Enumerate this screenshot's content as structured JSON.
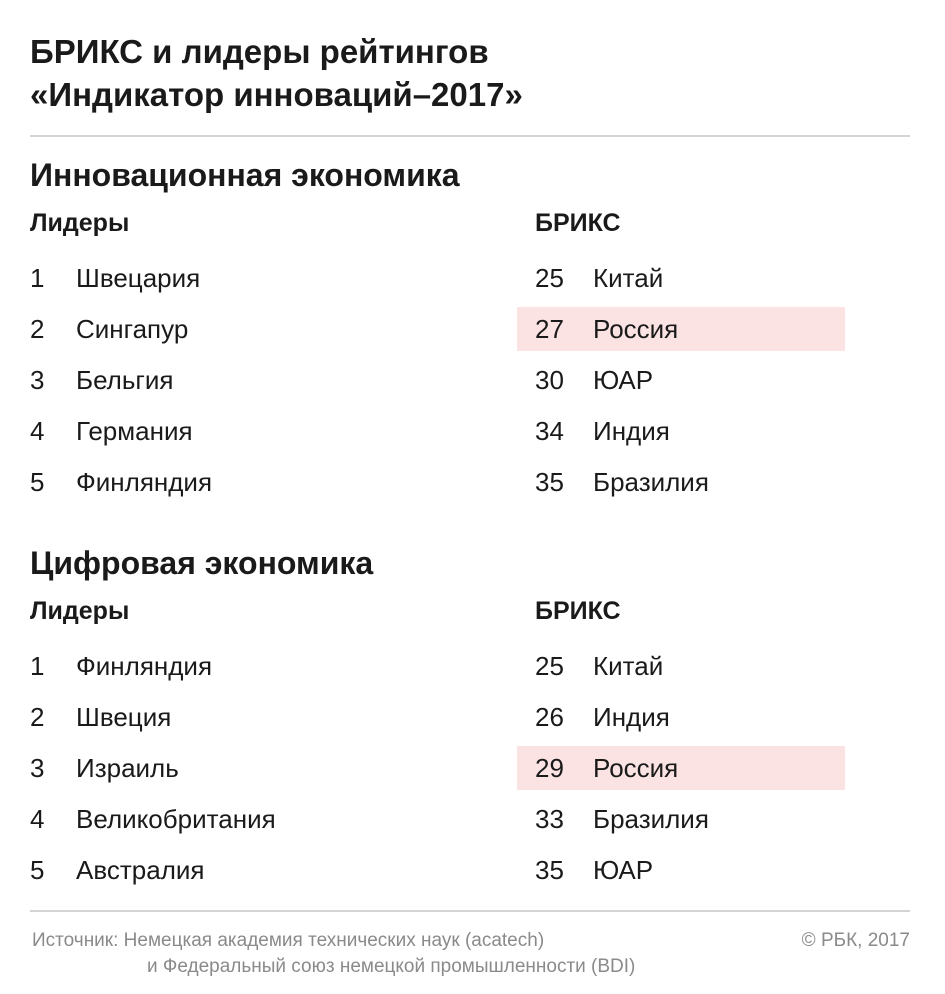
{
  "title": {
    "line1": "БРИКС и лидеры рейтингов",
    "line2": "«Индикатор инноваций–2017»"
  },
  "sections": [
    {
      "title": "Инновационная экономика",
      "leaders_heading": "Лидеры",
      "brics_heading": "БРИКС",
      "leaders": [
        {
          "rank": "1",
          "country": "Швецария"
        },
        {
          "rank": "2",
          "country": "Сингапур"
        },
        {
          "rank": "3",
          "country": "Бельгия"
        },
        {
          "rank": "4",
          "country": "Германия"
        },
        {
          "rank": "5",
          "country": "Финляндия"
        }
      ],
      "brics": [
        {
          "rank": "25",
          "country": "Китай",
          "highlight": false
        },
        {
          "rank": "27",
          "country": "Россия",
          "highlight": true
        },
        {
          "rank": "30",
          "country": "ЮАР",
          "highlight": false
        },
        {
          "rank": "34",
          "country": "Индия",
          "highlight": false
        },
        {
          "rank": "35",
          "country": "Бразилия",
          "highlight": false
        }
      ]
    },
    {
      "title": "Цифровая экономика",
      "leaders_heading": "Лидеры",
      "brics_heading": "БРИКС",
      "leaders": [
        {
          "rank": "1",
          "country": "Финляндия"
        },
        {
          "rank": "2",
          "country": "Швеция"
        },
        {
          "rank": "3",
          "country": "Израиль"
        },
        {
          "rank": "4",
          "country": "Великобритания"
        },
        {
          "rank": "5",
          "country": "Австралия"
        }
      ],
      "brics": [
        {
          "rank": "25",
          "country": "Китай",
          "highlight": false
        },
        {
          "rank": "26",
          "country": "Индия",
          "highlight": false
        },
        {
          "rank": "29",
          "country": "Россия",
          "highlight": true
        },
        {
          "rank": "33",
          "country": "Бразилия",
          "highlight": false
        },
        {
          "rank": "35",
          "country": "ЮАР",
          "highlight": false
        }
      ]
    }
  ],
  "footer": {
    "source_line1": "Источник: Немецкая академия технических наук (acatech)",
    "source_line2": "и Федеральный союз немецкой промышленности (BDI)",
    "copyright": "© РБК, 2017"
  },
  "colors": {
    "highlight": "#fbe3e3",
    "text": "#1a1a1a",
    "muted": "#8a8a8a",
    "rule": "#d4d4d4"
  }
}
